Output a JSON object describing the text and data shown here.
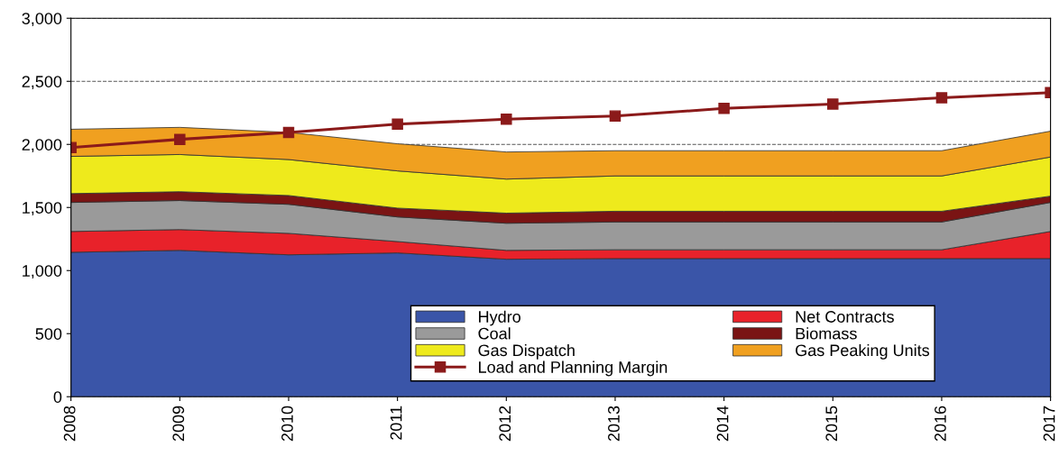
{
  "chart_data": {
    "type": "area",
    "stacked": true,
    "x": [
      2008,
      2009,
      2010,
      2011,
      2012,
      2013,
      2014,
      2015,
      2016,
      2017
    ],
    "series": [
      {
        "name": "Hydro",
        "color": "#3a55a8",
        "values": [
          1145,
          1160,
          1125,
          1140,
          1090,
          1095,
          1095,
          1095,
          1095,
          1095
        ]
      },
      {
        "name": "Net Contracts",
        "color": "#e8222a",
        "values": [
          165,
          165,
          170,
          90,
          70,
          70,
          70,
          70,
          70,
          215
        ]
      },
      {
        "name": "Coal",
        "color": "#9a9a9a",
        "values": [
          230,
          230,
          230,
          195,
          215,
          220,
          220,
          220,
          220,
          230
        ]
      },
      {
        "name": "Biomass",
        "color": "#7a1414",
        "values": [
          70,
          70,
          70,
          70,
          80,
          85,
          85,
          85,
          85,
          50
        ]
      },
      {
        "name": "Gas Dispatch",
        "color": "#eeea1c",
        "values": [
          295,
          295,
          285,
          295,
          270,
          280,
          280,
          280,
          280,
          310
        ]
      },
      {
        "name": "Gas Peaking Units",
        "color": "#f0a020",
        "values": [
          215,
          215,
          215,
          215,
          215,
          200,
          200,
          200,
          200,
          205
        ]
      },
      {
        "name": "Load and Planning Margin",
        "type": "line",
        "color": "#8b1a1a",
        "marker": "square",
        "values": [
          1975,
          2040,
          2095,
          2160,
          2200,
          2225,
          2285,
          2320,
          2370,
          2410
        ]
      }
    ],
    "xlim": [
      2008,
      2017
    ],
    "xticks": [
      2008,
      2009,
      2010,
      2011,
      2012,
      2013,
      2014,
      2015,
      2016,
      2017
    ],
    "ylim": [
      0,
      3000
    ],
    "yticks": [
      0,
      500,
      {
        "value": 1000,
        "label": "1,000"
      },
      {
        "value": 1500,
        "label": "1,500"
      },
      {
        "value": 2000,
        "label": "2,000"
      },
      {
        "value": 2500,
        "label": "2,500"
      },
      {
        "value": 3000,
        "label": "3,000"
      }
    ],
    "grid": "y",
    "legend": "bottom right"
  }
}
